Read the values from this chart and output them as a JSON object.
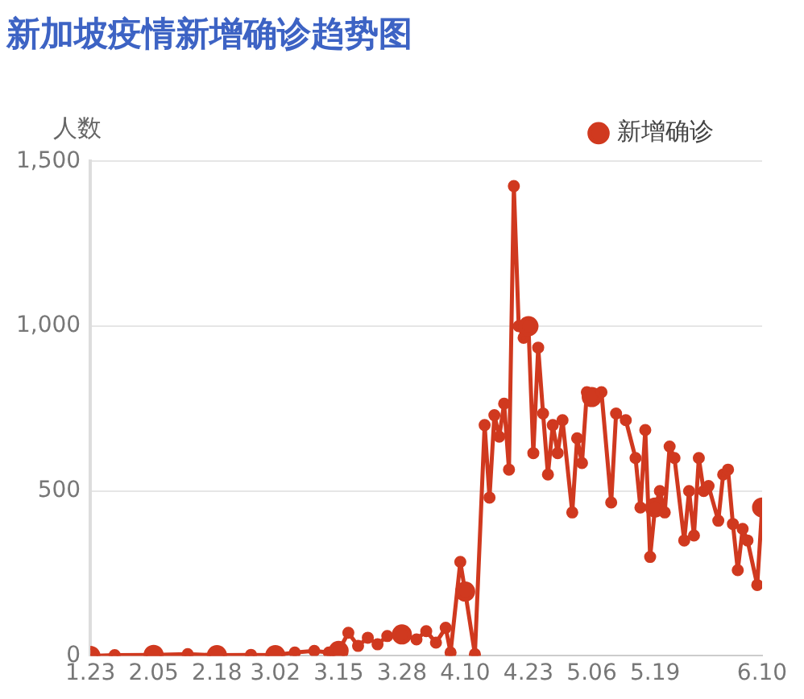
{
  "chart_data": {
    "type": "line",
    "title": "新加坡疫情新增确诊趋势图",
    "ylabel": "人数",
    "x": [
      "--01-23",
      "--01-28",
      "--02-05",
      "--02-12",
      "--02-18",
      "--02-25",
      "--03-02",
      "--03-06",
      "--03-10",
      "--03-13",
      "--03-15",
      "--03-17",
      "--03-19",
      "--03-21",
      "--03-23",
      "--03-25",
      "--03-28",
      "--03-31",
      "--04-02",
      "--04-04",
      "--04-06",
      "--04-07",
      "--04-09",
      "--04-10",
      "--04-12",
      "--04-14",
      "--04-15",
      "--04-16",
      "--04-17",
      "--04-18",
      "--04-19",
      "--04-20",
      "--04-21",
      "--04-22",
      "--04-23",
      "--04-24",
      "--04-25",
      "--04-26",
      "--04-27",
      "--04-28",
      "--04-29",
      "--04-30",
      "--05-02",
      "--05-03",
      "--05-04",
      "--05-05",
      "--05-06",
      "--05-08",
      "--05-10",
      "--05-11",
      "--05-13",
      "--05-15",
      "--05-16",
      "--05-17",
      "--05-18",
      "--05-19",
      "--05-20",
      "--05-21",
      "--05-22",
      "--05-23",
      "--05-25",
      "--05-26",
      "--05-27",
      "--05-28",
      "--05-29",
      "--05-30",
      "--06-01",
      "--06-02",
      "--06-03",
      "--06-04",
      "--06-05",
      "--06-06",
      "--06-07",
      "--06-09",
      "--06-10"
    ],
    "series": [
      {
        "name": "新增确诊",
        "color": "#d0391f",
        "values": [
          0,
          2,
          3,
          5,
          2,
          3,
          2,
          10,
          15,
          10,
          15,
          70,
          30,
          55,
          35,
          60,
          65,
          50,
          75,
          40,
          85,
          10,
          285,
          195,
          5,
          700,
          480,
          730,
          665,
          765,
          565,
          1425,
          1000,
          965,
          1000,
          615,
          935,
          735,
          550,
          700,
          615,
          715,
          435,
          660,
          585,
          800,
          785,
          800,
          465,
          735,
          715,
          600,
          450,
          685,
          300,
          450,
          500,
          435,
          635,
          600,
          350,
          500,
          365,
          600,
          500,
          515,
          410,
          550,
          565,
          400,
          260,
          385,
          350,
          215,
          450
        ]
      }
    ],
    "xlim": [
      "--01-23",
      "--06-10"
    ],
    "xticks": [
      {
        "value": "--01-23",
        "label": "1.23"
      },
      {
        "value": "--02-05",
        "label": "2.05"
      },
      {
        "value": "--02-18",
        "label": "2.18"
      },
      {
        "value": "--03-02",
        "label": "3.02"
      },
      {
        "value": "--03-15",
        "label": "3.15"
      },
      {
        "value": "--03-28",
        "label": "3.28"
      },
      {
        "value": "--04-10",
        "label": "4.10"
      },
      {
        "value": "--04-23",
        "label": "4.23"
      },
      {
        "value": "--05-06",
        "label": "5.06"
      },
      {
        "value": "--05-19",
        "label": "5.19"
      },
      {
        "value": "--06-10",
        "label": "6.10"
      }
    ],
    "ylim": [
      0,
      1500
    ],
    "yticks": [
      0,
      500,
      {
        "value": 1000,
        "label": "1,000"
      },
      {
        "value": 1500,
        "label": "1,500"
      }
    ],
    "grid": "y",
    "legend": "top right",
    "marker": "circle",
    "line_style": "solid"
  }
}
